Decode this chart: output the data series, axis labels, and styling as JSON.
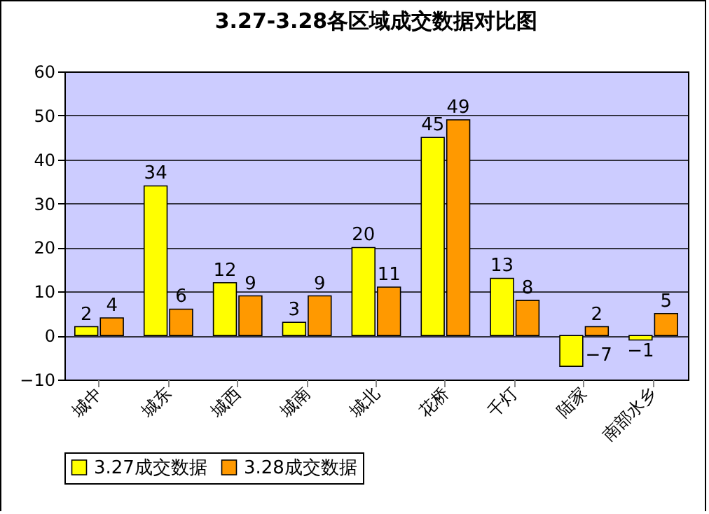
{
  "chart_data": {
    "type": "bar",
    "title": "3.27-3.28各区域成交数据对比图",
    "categories": [
      "城中",
      "城东",
      "城西",
      "城南",
      "城北",
      "花桥",
      "千灯",
      "陆家",
      "南部水乡"
    ],
    "series": [
      {
        "name": "3.27成交数据",
        "color": "#ffff00",
        "values": [
          2,
          34,
          12,
          3,
          20,
          45,
          13,
          -7,
          -1
        ]
      },
      {
        "name": "3.28成交数据",
        "color": "#ff9900",
        "values": [
          4,
          6,
          9,
          9,
          11,
          49,
          8,
          2,
          5
        ]
      }
    ],
    "ylim": [
      -10,
      60
    ],
    "yticks": [
      -10,
      0,
      10,
      20,
      30,
      40,
      50,
      60
    ],
    "grid": "y",
    "legend": "bottom",
    "data_labels": true
  }
}
